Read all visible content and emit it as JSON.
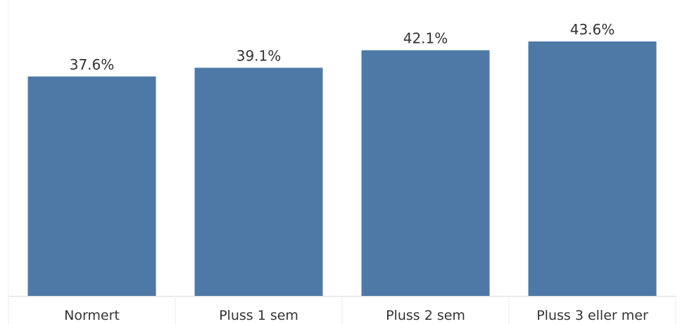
{
  "chart_data": {
    "type": "bar",
    "categories": [
      "Normert",
      "Pluss 1 sem",
      "Pluss 2 sem",
      "Pluss 3 eller mer"
    ],
    "values": [
      37.6,
      39.1,
      42.1,
      43.6
    ],
    "value_labels": [
      "37.6%",
      "39.1%",
      "42.1%",
      "43.6%"
    ],
    "title": "",
    "xlabel": "",
    "ylabel": "",
    "ylim": [
      0,
      43.6
    ],
    "grid": false,
    "bar_color": "#4e79a7",
    "axis_color": "#d9d9d9",
    "text_color": "#333333"
  }
}
